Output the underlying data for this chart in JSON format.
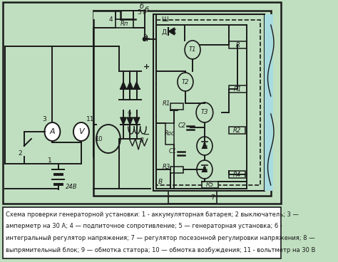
{
  "background_color": "#c0dfc0",
  "white": "#ffffff",
  "black": "#1a1a1a",
  "cyan_panel": "#a8dce0",
  "caption_text_line1": "Схема проверки генераторной установки: 1 - аккумуляторная батарея; 2 выключатель; 3 —",
  "caption_text_line2": "амперметр на 30 А; 4 — подпиточное сопротивление; 5 — генераторная установка; 6 -",
  "caption_text_line3": "интегральный регулятор напряжения; 7 — регулятор посезонной регулировки напряжения; 8 —",
  "caption_text_line4": "выпрямительный блок; 9 — обмотка статора; 10 — обмотка возбуждения; 11 - вольтметр на 30 В",
  "fig_width": 4.74,
  "fig_height": 3.68,
  "dpi": 100
}
